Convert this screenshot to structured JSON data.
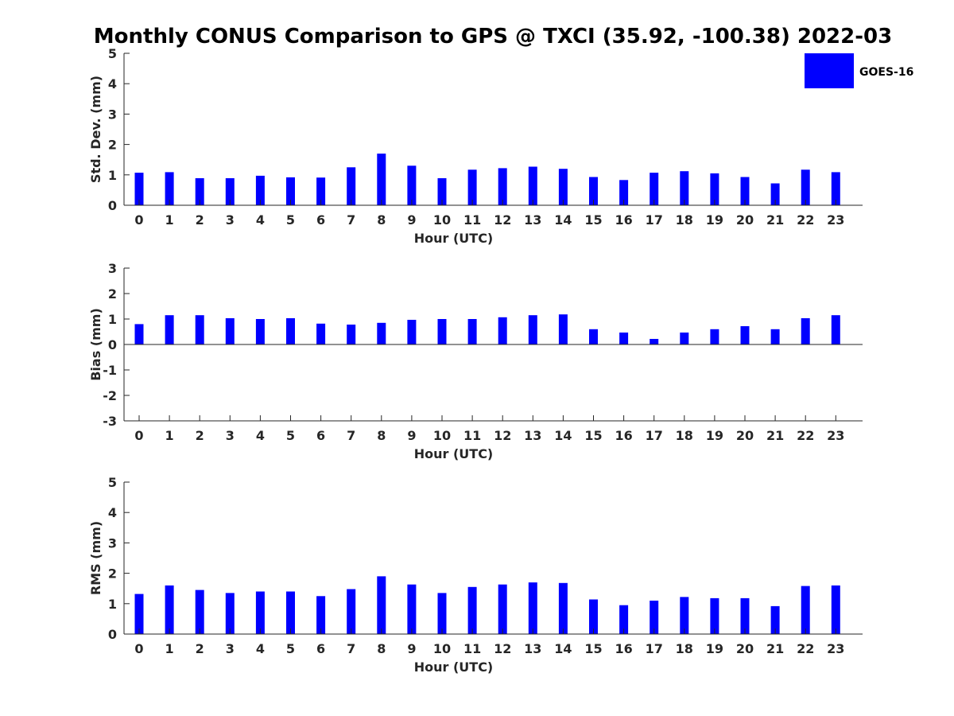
{
  "chart_data": [
    {
      "type": "bar",
      "title": "Monthly CONUS Comparison to GPS @ TXCI (35.92, -100.38) 2022-03",
      "xlabel": "Hour (UTC)",
      "ylabel": "Std. Dev. (mm)",
      "ylim": [
        0,
        5
      ],
      "yticks": [
        0,
        1,
        2,
        3,
        4,
        5
      ],
      "categories": [
        "0",
        "1",
        "2",
        "3",
        "4",
        "5",
        "6",
        "7",
        "8",
        "9",
        "10",
        "11",
        "12",
        "13",
        "14",
        "15",
        "16",
        "17",
        "18",
        "19",
        "20",
        "21",
        "22",
        "23"
      ],
      "series": [
        {
          "name": "GOES-16",
          "color": "#0000ff",
          "values": [
            1.07,
            1.09,
            0.89,
            0.89,
            0.97,
            0.92,
            0.91,
            1.25,
            1.7,
            1.3,
            0.89,
            1.17,
            1.22,
            1.27,
            1.2,
            0.93,
            0.83,
            1.07,
            1.12,
            1.05,
            0.93,
            0.72,
            1.17,
            1.09
          ]
        }
      ],
      "legend": "top-right",
      "grid": false
    },
    {
      "type": "bar",
      "xlabel": "Hour (UTC)",
      "ylabel": "Bias (mm)",
      "ylim": [
        -3,
        3
      ],
      "yticks": [
        -3,
        -2,
        -1,
        0,
        1,
        2,
        3
      ],
      "categories": [
        "0",
        "1",
        "2",
        "3",
        "4",
        "5",
        "6",
        "7",
        "8",
        "9",
        "10",
        "11",
        "12",
        "13",
        "14",
        "15",
        "16",
        "17",
        "18",
        "19",
        "20",
        "21",
        "22",
        "23"
      ],
      "series": [
        {
          "name": "GOES-16",
          "color": "#0000ff",
          "values": [
            0.8,
            1.15,
            1.15,
            1.03,
            1.0,
            1.03,
            0.82,
            0.78,
            0.85,
            0.97,
            1.0,
            1.0,
            1.07,
            1.15,
            1.18,
            0.6,
            0.47,
            0.22,
            0.47,
            0.6,
            0.72,
            0.6,
            1.03,
            1.15
          ]
        }
      ],
      "grid": false
    },
    {
      "type": "bar",
      "xlabel": "Hour (UTC)",
      "ylabel": "RMS (mm)",
      "ylim": [
        0,
        5
      ],
      "yticks": [
        0,
        1,
        2,
        3,
        4,
        5
      ],
      "categories": [
        "0",
        "1",
        "2",
        "3",
        "4",
        "5",
        "6",
        "7",
        "8",
        "9",
        "10",
        "11",
        "12",
        "13",
        "14",
        "15",
        "16",
        "17",
        "18",
        "19",
        "20",
        "21",
        "22",
        "23"
      ],
      "series": [
        {
          "name": "GOES-16",
          "color": "#0000ff",
          "values": [
            1.32,
            1.6,
            1.45,
            1.35,
            1.4,
            1.4,
            1.25,
            1.48,
            1.9,
            1.63,
            1.35,
            1.55,
            1.63,
            1.7,
            1.68,
            1.14,
            0.95,
            1.1,
            1.22,
            1.18,
            1.18,
            0.92,
            1.58,
            1.6
          ]
        }
      ],
      "grid": false
    }
  ]
}
